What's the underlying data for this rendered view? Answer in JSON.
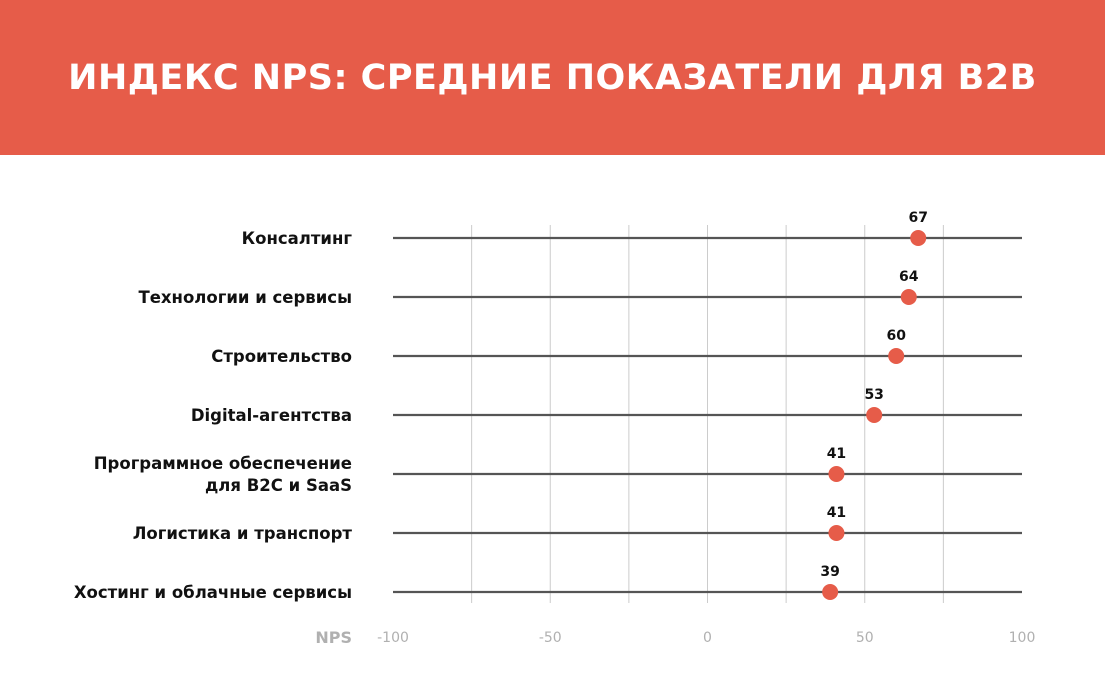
{
  "header": {
    "title": "ИНДЕКС NPS: СРЕДНИЕ ПОКАЗАТЕЛИ ДЛЯ B2B"
  },
  "colors": {
    "accent": "#e65c49",
    "line": "#555555",
    "grid": "#cccccc",
    "tick": "#b0b0b0",
    "label": "#111111"
  },
  "chart_data": {
    "type": "scatter",
    "title": "ИНДЕКС NPS: СРЕДНИЕ ПОКАЗАТЕЛИ ДЛЯ B2B",
    "xlabel": "NPS",
    "xlim": [
      -100,
      100
    ],
    "xticks": [
      -100,
      -50,
      0,
      50,
      100
    ],
    "xtick_labels": [
      "-100",
      "-50",
      "0",
      "50",
      "100"
    ],
    "grid": true,
    "categories": [
      [
        "Консалтинг"
      ],
      [
        "Технологии и сервисы"
      ],
      [
        "Строительство"
      ],
      [
        "Digital-агентства"
      ],
      [
        "Программное обеспечение",
        "для B2C и SaaS"
      ],
      [
        "Логистика и транспорт"
      ],
      [
        "Хостинг и облачные сервисы"
      ]
    ],
    "values": [
      67,
      64,
      60,
      53,
      41,
      41,
      39
    ],
    "value_labels": [
      "67",
      "64",
      "60",
      "53",
      "41",
      "41",
      "39"
    ]
  }
}
